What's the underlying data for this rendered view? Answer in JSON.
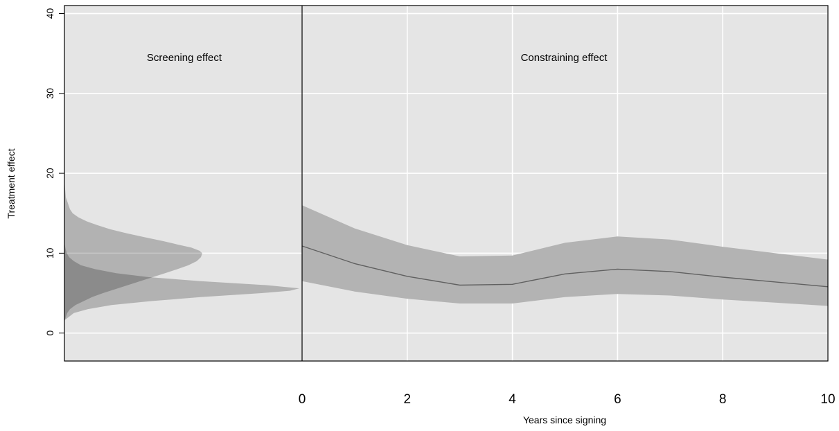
{
  "chart_data": {
    "type": "line",
    "xlabel": "Years since signing",
    "ylabel": "Treatment effect",
    "ylim": [
      -3.5,
      41
    ],
    "xlim": [
      0,
      10
    ],
    "yticks": [
      0,
      10,
      20,
      30,
      40
    ],
    "xticks": [
      0,
      2,
      4,
      6,
      8,
      10
    ],
    "grid": true,
    "colors": {
      "panel_bg": "#e5e5e5",
      "grid": "#ffffff",
      "band": "#b3b3b3",
      "line": "#606060",
      "density_overlap": "#999999"
    },
    "panels": {
      "left_label": "Screening effect",
      "right_label": "Constraining effect"
    },
    "series": [
      {
        "x": [
          0,
          1,
          2,
          3,
          4,
          5,
          6,
          7,
          8,
          9,
          10
        ],
        "estimate": [
          10.9,
          8.7,
          7.1,
          6.0,
          6.1,
          7.4,
          8.0,
          7.7,
          7.0,
          6.4,
          5.8
        ],
        "lower": [
          6.5,
          5.2,
          4.3,
          3.7,
          3.7,
          4.5,
          4.9,
          4.7,
          4.2,
          3.8,
          3.4
        ],
        "upper": [
          16.0,
          13.1,
          11.0,
          9.6,
          9.7,
          11.3,
          12.1,
          11.7,
          10.8,
          10.0,
          9.2
        ]
      }
    ],
    "screening_distributions": [
      {
        "kind": "density",
        "y": [
          1.4,
          2.0,
          2.5,
          3.0,
          3.5,
          4.0,
          4.5,
          5.0,
          5.5,
          6.0,
          6.5,
          7.0,
          7.5,
          8.0,
          8.5,
          9.0,
          9.5,
          10.0,
          10.3,
          10.7,
          11.0,
          11.5,
          12.0,
          12.5,
          13.0,
          13.5,
          14.0,
          14.5,
          15.0,
          15.5,
          16.0,
          16.5,
          17.0,
          18.0,
          19.2
        ],
        "density": [
          0.0,
          0.01,
          0.02,
          0.04,
          0.08,
          0.14,
          0.2,
          0.28,
          0.37,
          0.46,
          0.55,
          0.64,
          0.73,
          0.82,
          0.9,
          0.96,
          0.99,
          1.0,
          0.98,
          0.92,
          0.84,
          0.72,
          0.58,
          0.45,
          0.33,
          0.24,
          0.16,
          0.1,
          0.06,
          0.04,
          0.03,
          0.02,
          0.01,
          0.005,
          0.0
        ]
      },
      {
        "kind": "density",
        "y": [
          1.6,
          2.5,
          3.0,
          3.5,
          4.0,
          4.5,
          5.0,
          5.3,
          5.6,
          6.0,
          6.5,
          7.0,
          7.5,
          8.0,
          8.5,
          9.0,
          9.5,
          10.0,
          10.5,
          11.0,
          11.3
        ],
        "density": [
          0.0,
          0.04,
          0.1,
          0.2,
          0.37,
          0.58,
          0.84,
          0.96,
          1.0,
          0.86,
          0.58,
          0.36,
          0.22,
          0.13,
          0.07,
          0.04,
          0.02,
          0.01,
          0.005,
          0.002,
          0.0
        ]
      }
    ]
  }
}
